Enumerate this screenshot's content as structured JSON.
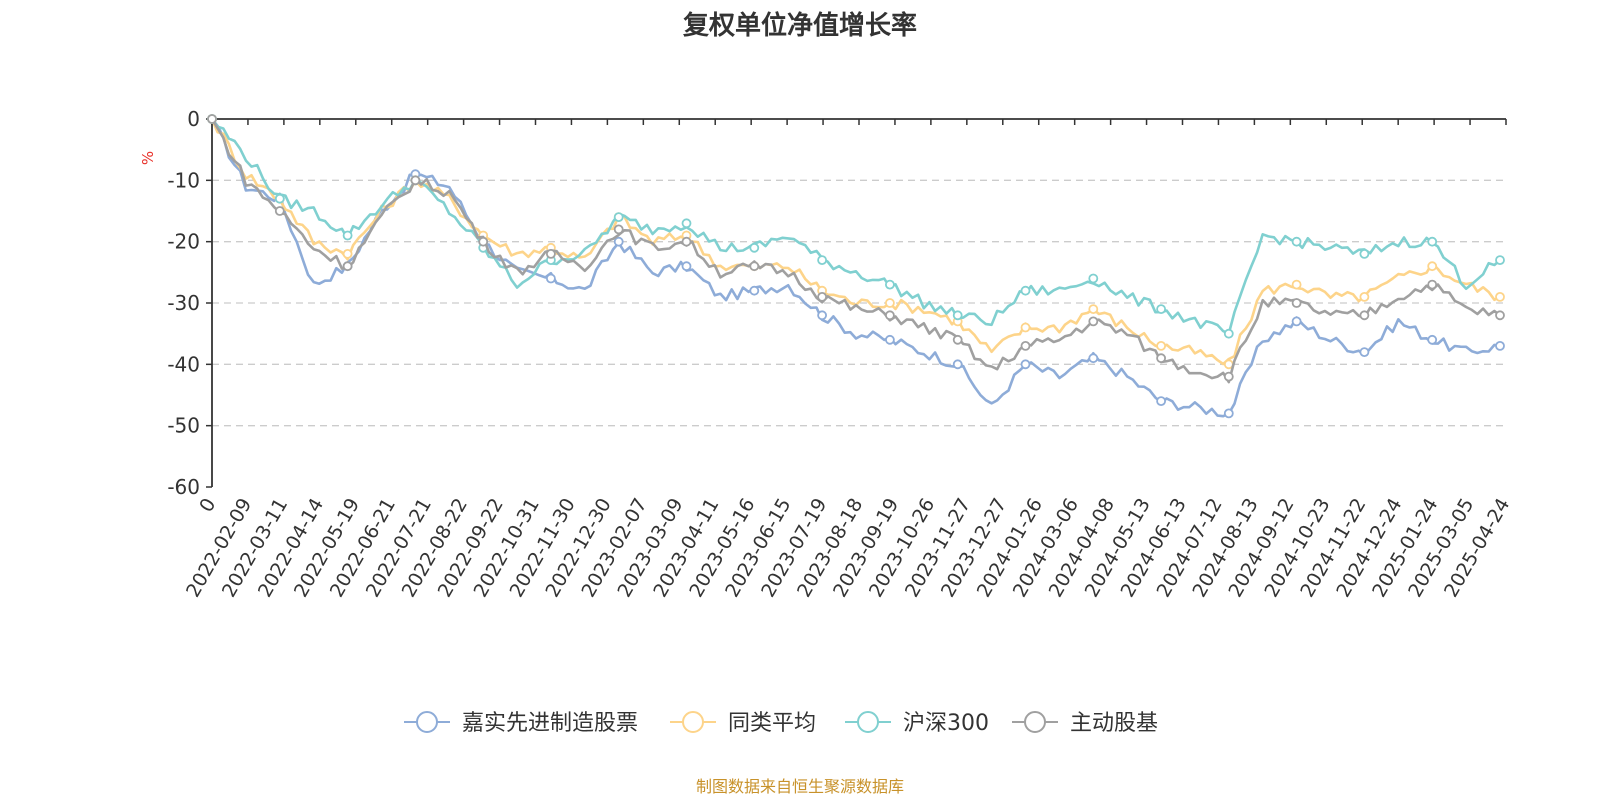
{
  "chart_data": {
    "type": "line",
    "title": "复权单位净值增长率",
    "ylabel": "%",
    "ylim": [
      -60,
      0
    ],
    "yticks": [
      0,
      -10,
      -20,
      -30,
      -40,
      -50,
      -60
    ],
    "grid": true,
    "legend_position": "bottom",
    "source": "制图数据来自恒生聚源数据库",
    "x_tick_labels": [
      "0",
      "2022-02-09",
      "2022-03-11",
      "2022-04-14",
      "2022-05-19",
      "2022-06-21",
      "2022-07-21",
      "2022-08-22",
      "2022-09-22",
      "2022-10-31",
      "2022-11-30",
      "2022-12-30",
      "2023-02-07",
      "2023-03-09",
      "2023-04-11",
      "2023-05-16",
      "2023-06-15",
      "2023-07-19",
      "2023-08-18",
      "2023-09-19",
      "2023-10-26",
      "2023-11-27",
      "2023-12-27",
      "2024-01-26",
      "2024-03-06",
      "2024-04-08",
      "2024-05-13",
      "2024-06-13",
      "2024-07-12",
      "2024-08-13",
      "2024-09-12",
      "2024-10-23",
      "2024-11-22",
      "2024-12-24",
      "2025-01-24",
      "2025-03-05",
      "2025-04-24"
    ],
    "series": [
      {
        "name": "嘉实先进制造股票",
        "color": "#8eacd8",
        "values": [
          0,
          -11,
          -13,
          -27,
          -24,
          -15,
          -9,
          -11,
          -20,
          -25,
          -26,
          -28,
          -20,
          -25,
          -24,
          -29,
          -28,
          -27,
          -32,
          -35,
          -36,
          -38,
          -40,
          -47,
          -40,
          -42,
          -39,
          -42,
          -46,
          -47,
          -48,
          -36,
          -33,
          -36,
          -38,
          -33,
          -36,
          -38,
          -37
        ]
      },
      {
        "name": "同类平均",
        "color": "#fdd48a",
        "values": [
          0,
          -9,
          -13,
          -20,
          -22,
          -15,
          -10,
          -13,
          -19,
          -22,
          -21,
          -23,
          -16,
          -20,
          -19,
          -24,
          -24,
          -24,
          -28,
          -30,
          -30,
          -31,
          -33,
          -38,
          -34,
          -34,
          -31,
          -34,
          -37,
          -38,
          -40,
          -28,
          -27,
          -29,
          -29,
          -26,
          -24,
          -27,
          -29
        ]
      },
      {
        "name": "沪深300",
        "color": "#80d0d0",
        "values": [
          0,
          -6,
          -13,
          -15,
          -19,
          -14,
          -10,
          -15,
          -21,
          -27,
          -23,
          -22,
          -16,
          -18,
          -17,
          -21,
          -21,
          -19,
          -23,
          -25,
          -27,
          -30,
          -32,
          -33,
          -28,
          -28,
          -26,
          -29,
          -31,
          -33,
          -35,
          -19,
          -20,
          -21,
          -22,
          -20,
          -20,
          -27,
          -23
        ]
      },
      {
        "name": "主动股基",
        "color": "#a0a0a0",
        "values": [
          0,
          -10,
          -15,
          -21,
          -24,
          -16,
          -10,
          -12,
          -20,
          -25,
          -22,
          -24,
          -18,
          -21,
          -20,
          -25,
          -24,
          -25,
          -29,
          -31,
          -32,
          -34,
          -36,
          -41,
          -37,
          -36,
          -33,
          -35,
          -39,
          -41,
          -42,
          -30,
          -30,
          -32,
          -32,
          -29,
          -27,
          -31,
          -32
        ]
      }
    ]
  }
}
